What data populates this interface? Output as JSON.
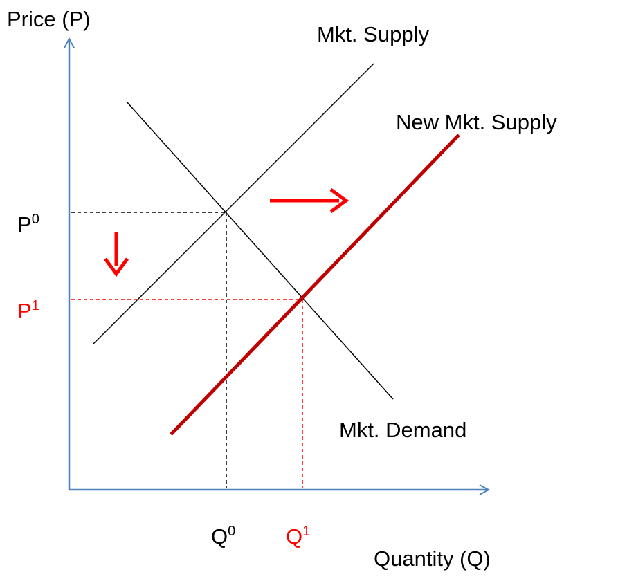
{
  "axes": {
    "y_label": "Price (P)",
    "x_label": "Quantity (Q)"
  },
  "curves": [
    {
      "label": "Mkt. Supply"
    },
    {
      "label": "New Mkt. Supply"
    },
    {
      "label": "Mkt. Demand"
    }
  ],
  "prices": [
    {
      "base": "P",
      "sup": "0"
    },
    {
      "base": "P",
      "sup": "1"
    }
  ],
  "quantities": [
    {
      "base": "Q",
      "sup": "0"
    },
    {
      "base": "Q",
      "sup": "1"
    }
  ]
}
